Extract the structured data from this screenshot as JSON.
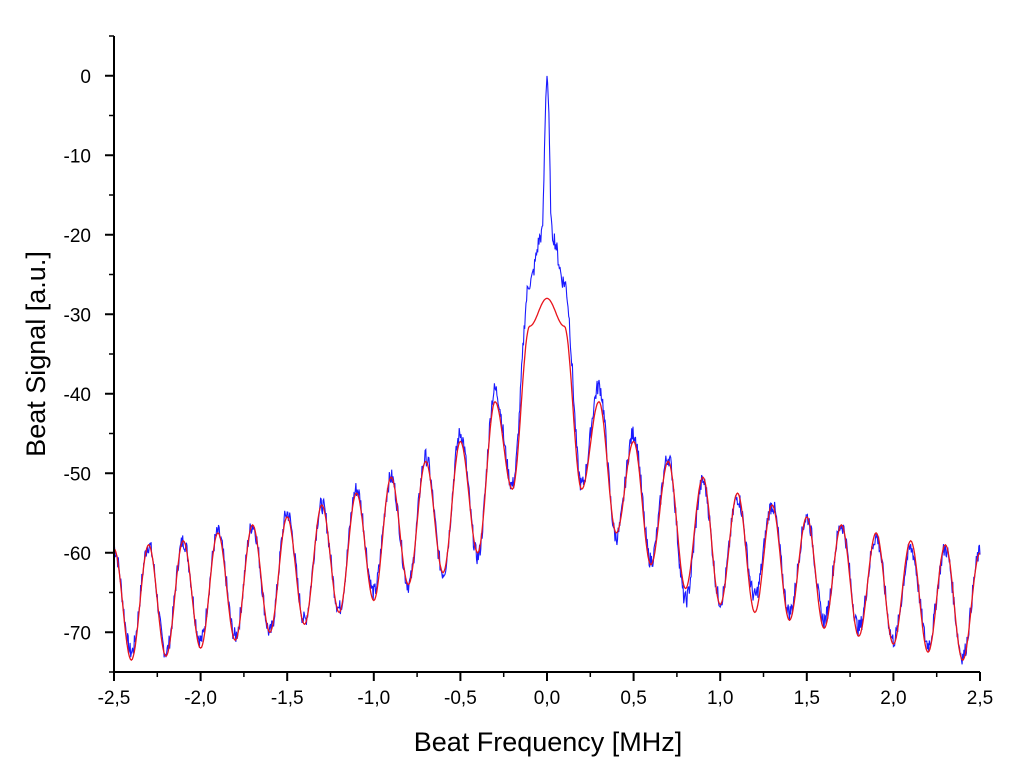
{
  "chart_data": {
    "type": "line",
    "title": "",
    "xlabel": "Beat Frequency [MHz]",
    "ylabel": "Beat Signal [a.u.]",
    "xlim": [
      -2.5,
      2.5
    ],
    "ylim": [
      -75,
      5
    ],
    "x_ticks": [
      "-2,5",
      "-2,0",
      "-1,5",
      "-1,0",
      "-0,5",
      "0,0",
      "0,5",
      "1,0",
      "1,5",
      "2,0",
      "2,5"
    ],
    "y_ticks": [
      "0",
      "-10",
      "-20",
      "-30",
      "-40",
      "-50",
      "-60",
      "-70"
    ],
    "x_tick_values": [
      -2.5,
      -2.0,
      -1.5,
      -1.0,
      -0.5,
      0.0,
      0.5,
      1.0,
      1.5,
      2.0,
      2.5
    ],
    "y_tick_values": [
      0,
      -10,
      -20,
      -30,
      -40,
      -50,
      -60,
      -70
    ],
    "grid": false,
    "legend": "none",
    "series": [
      {
        "color": "#1a1aff",
        "style": "noisy measured trace",
        "peak": {
          "x": 0.0,
          "y": 0.0
        },
        "x": [
          -2.5,
          -2.4,
          -2.3,
          -2.2,
          -2.1,
          -2.0,
          -1.9,
          -1.8,
          -1.7,
          -1.6,
          -1.5,
          -1.4,
          -1.3,
          -1.2,
          -1.1,
          -1.0,
          -0.9,
          -0.8,
          -0.7,
          -0.6,
          -0.5,
          -0.4,
          -0.3,
          -0.2,
          -0.1,
          -0.03,
          0.0,
          0.03,
          0.1,
          0.2,
          0.3,
          0.4,
          0.5,
          0.6,
          0.7,
          0.8,
          0.9,
          1.0,
          1.1,
          1.2,
          1.3,
          1.4,
          1.5,
          1.6,
          1.7,
          1.8,
          1.9,
          2.0,
          2.1,
          2.2,
          2.3,
          2.4,
          2.5
        ],
        "y": [
          -59.5,
          -72.5,
          -59.0,
          -72.5,
          -58.5,
          -71.0,
          -57.5,
          -70.5,
          -56.5,
          -70.0,
          -55.0,
          -68.5,
          -54.0,
          -67.0,
          -52.0,
          -65.0,
          -50.5,
          -64.0,
          -48.0,
          -62.5,
          -45.0,
          -60.5,
          -39.5,
          -51.5,
          -26.0,
          -20.0,
          0.0,
          -20.0,
          -26.0,
          -51.5,
          -39.0,
          -58.0,
          -45.0,
          -61.0,
          -48.0,
          -66.0,
          -51.0,
          -66.0,
          -53.0,
          -65.5,
          -54.0,
          -67.5,
          -55.5,
          -68.5,
          -56.5,
          -69.5,
          -58.0,
          -71.0,
          -59.5,
          -71.5,
          -59.5,
          -73.0,
          -60.0
        ]
      },
      {
        "color": "#e8141c",
        "style": "smooth fit",
        "x": [
          -2.5,
          -2.4,
          -2.3,
          -2.2,
          -2.1,
          -2.0,
          -1.9,
          -1.8,
          -1.7,
          -1.6,
          -1.5,
          -1.4,
          -1.3,
          -1.2,
          -1.1,
          -1.0,
          -0.9,
          -0.8,
          -0.7,
          -0.6,
          -0.5,
          -0.4,
          -0.3,
          -0.2,
          -0.1,
          0.0,
          0.1,
          0.2,
          0.3,
          0.4,
          0.5,
          0.6,
          0.7,
          0.8,
          0.9,
          1.0,
          1.1,
          1.2,
          1.3,
          1.4,
          1.5,
          1.6,
          1.7,
          1.8,
          1.9,
          2.0,
          2.1,
          2.2,
          2.3,
          2.4,
          2.5
        ],
        "y": [
          -59.5,
          -73.5,
          -59.0,
          -73.0,
          -58.5,
          -72.0,
          -57.5,
          -71.0,
          -56.5,
          -70.0,
          -55.5,
          -69.0,
          -54.0,
          -67.5,
          -52.5,
          -66.0,
          -50.5,
          -64.0,
          -48.5,
          -62.5,
          -46.0,
          -60.0,
          -41.0,
          -52.0,
          -31.5,
          -28.0,
          -31.5,
          -52.0,
          -41.0,
          -57.5,
          -46.0,
          -61.5,
          -48.5,
          -64.5,
          -50.5,
          -66.5,
          -52.5,
          -67.5,
          -54.0,
          -68.5,
          -55.5,
          -69.5,
          -56.5,
          -70.5,
          -57.5,
          -71.5,
          -58.5,
          -72.5,
          -59.0,
          -73.5,
          -60.0
        ]
      }
    ]
  }
}
